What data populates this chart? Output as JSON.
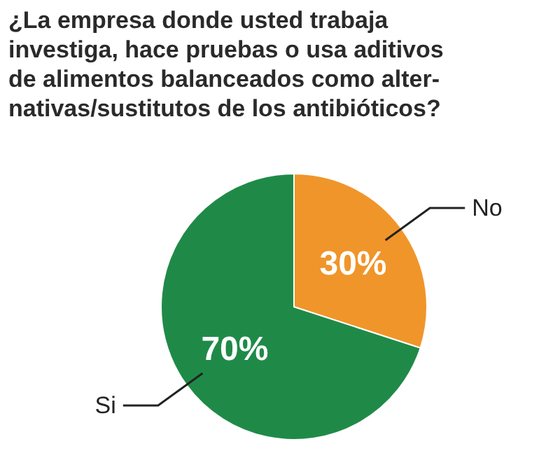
{
  "chart_data": {
    "type": "pie",
    "title": "¿La empresa donde usted trabaja\ninvestiga, hace pruebas o usa aditivos\nde alimentos balanceados como alter-\nnativas/sustitutos de los antibióticos?",
    "categories": [
      "Si",
      "No"
    ],
    "values": [
      70,
      30
    ],
    "value_labels": [
      "70%",
      "30%"
    ],
    "colors": [
      "#1f8a48",
      "#f0952a"
    ],
    "legend": false
  }
}
